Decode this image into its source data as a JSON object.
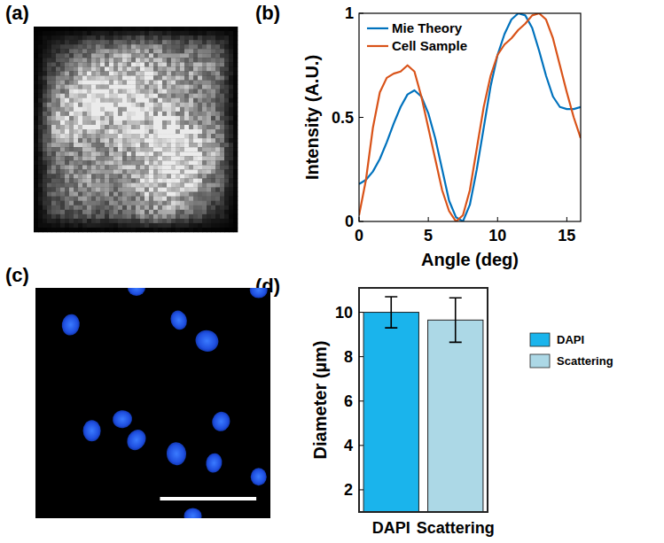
{
  "panel_labels": [
    "(a)",
    "(b)",
    "(c)",
    "(d)"
  ],
  "chart_data": [
    {
      "type": "line",
      "xlabel": "Angle (deg)",
      "ylabel": "Intensity (A.U.)",
      "x": [
        0,
        0.5,
        1,
        1.5,
        2,
        2.5,
        3,
        3.5,
        4,
        4.5,
        5,
        5.5,
        6,
        6.5,
        7,
        7.5,
        8,
        8.5,
        9,
        9.5,
        10,
        10.5,
        11,
        11.5,
        12,
        12.5,
        13,
        13.5,
        14,
        14.5,
        15,
        15.5,
        16
      ],
      "series": [
        {
          "name": "Mie Theory",
          "color": "#0072bd",
          "values": [
            0.18,
            0.2,
            0.24,
            0.3,
            0.38,
            0.47,
            0.55,
            0.61,
            0.63,
            0.6,
            0.52,
            0.4,
            0.25,
            0.1,
            0.02,
            0.0,
            0.08,
            0.25,
            0.45,
            0.65,
            0.8,
            0.9,
            0.97,
            1.0,
            0.99,
            0.93,
            0.82,
            0.7,
            0.6,
            0.55,
            0.54,
            0.54,
            0.55
          ]
        },
        {
          "name": "Cell Sample",
          "color": "#d95319",
          "values": [
            0.03,
            0.2,
            0.45,
            0.62,
            0.69,
            0.71,
            0.72,
            0.75,
            0.72,
            0.6,
            0.45,
            0.3,
            0.15,
            0.05,
            0.0,
            0.03,
            0.15,
            0.35,
            0.55,
            0.7,
            0.8,
            0.85,
            0.88,
            0.92,
            0.95,
            0.99,
            1.0,
            0.97,
            0.88,
            0.75,
            0.62,
            0.5,
            0.4
          ]
        }
      ],
      "xlim": [
        0,
        16
      ],
      "ylim": [
        0,
        1
      ],
      "xticks": [
        0,
        5,
        10,
        15
      ],
      "yticks": [
        0,
        0.5,
        1
      ],
      "legend": "upper left",
      "grid": false
    },
    {
      "type": "bar",
      "ylabel": "Diameter (µm)",
      "categories": [
        "DAPI",
        "Scattering"
      ],
      "values": [
        10,
        9.65
      ],
      "errors": [
        0.7,
        1.0
      ],
      "colors": [
        "#1ab4ec",
        "#acd8e6"
      ],
      "ylim": [
        1,
        11.1
      ],
      "yticks": [
        2,
        4,
        6,
        8,
        10
      ],
      "legend": "right",
      "grid": false
    }
  ]
}
